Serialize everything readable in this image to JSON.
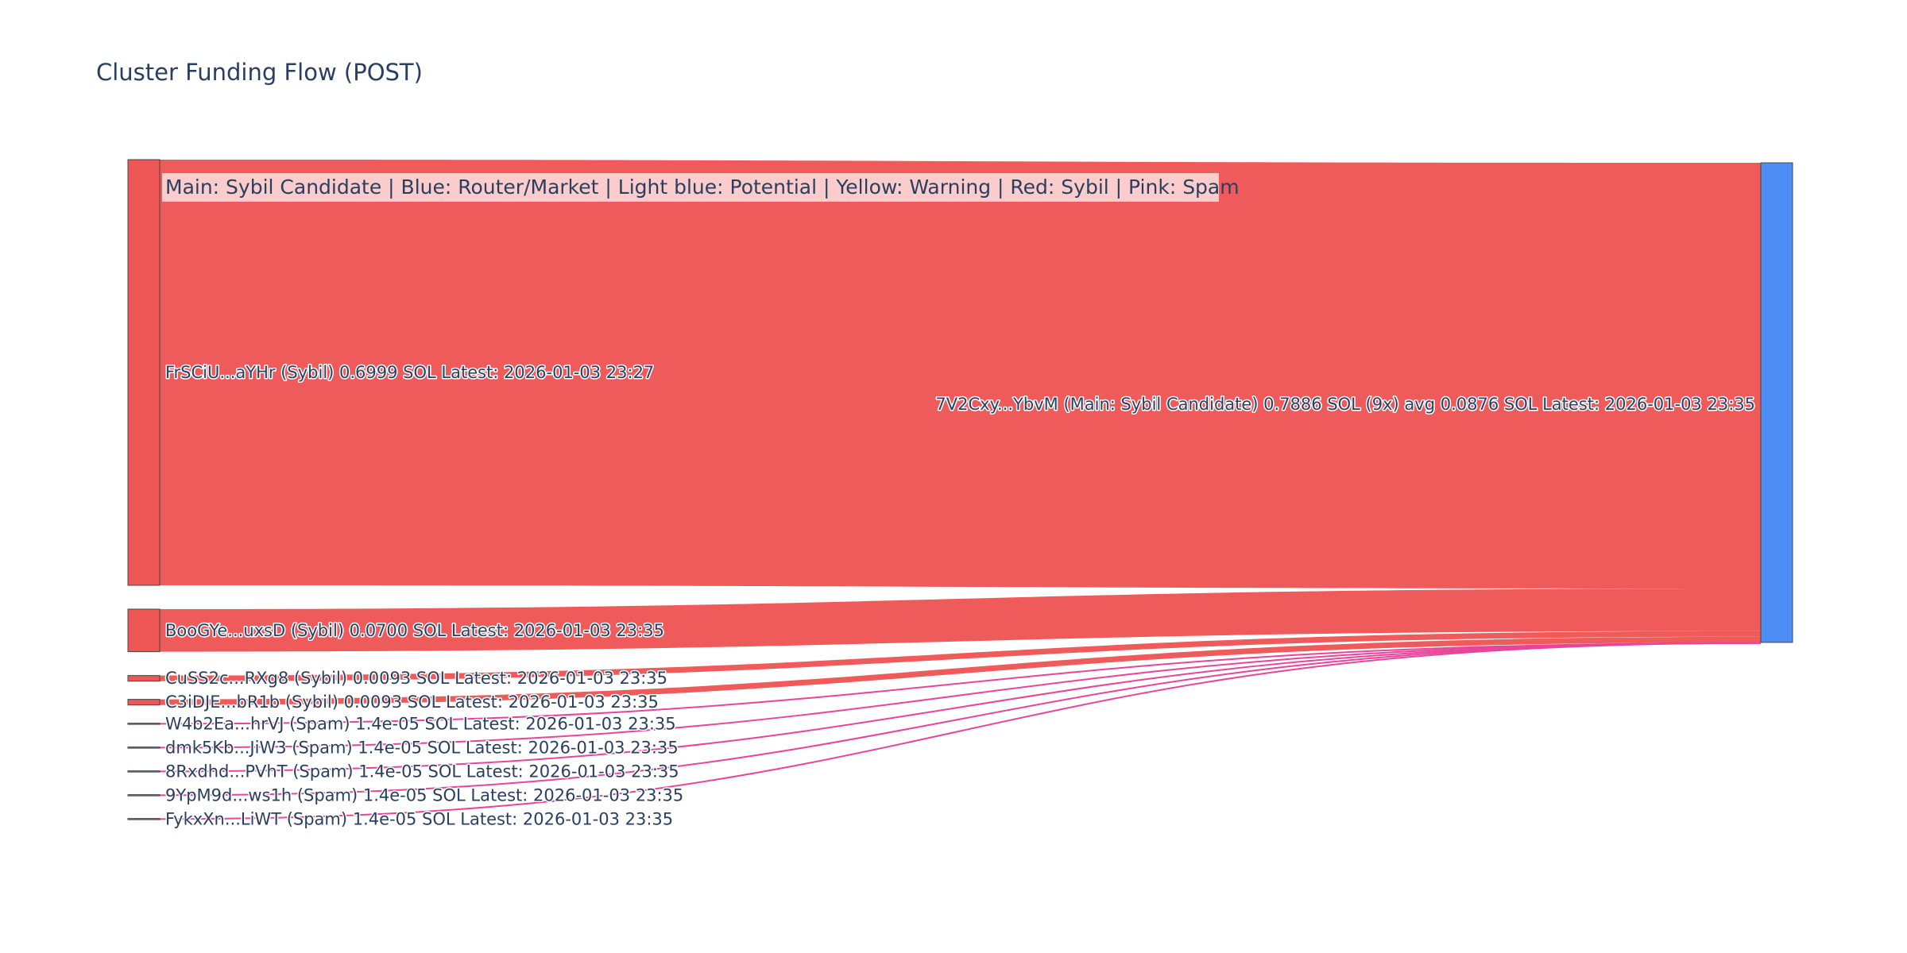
{
  "chart_data": {
    "type": "sankey",
    "title": "Cluster Funding Flow (POST)",
    "annotation": "Main: Sybil Candidate  |  Blue: Router/Market | Light blue: Potential | Yellow: Warning | Red: Sybil | Pink: Spam",
    "colors": {
      "sybil": "#ef5757",
      "spam": "#e8459a",
      "main": "#4d8ef5",
      "annotation_bg": "#fbe0e0",
      "node_border": "#444444"
    },
    "target": {
      "id": "main",
      "label": "7V2Cxy...YbvM (Main: Sybil Candidate) 0.7886 SOL (9x) avg 0.0876 SOL Latest: 2026-01-03 23:35",
      "value": 0.7886,
      "category": "main"
    },
    "sources": [
      {
        "label": "FrSCiU...aYHr (Sybil) 0.6999 SOL Latest: 2026-01-03 23:27",
        "value": 0.6999,
        "category": "sybil"
      },
      {
        "label": "BooGYe...uxsD (Sybil) 0.0700 SOL Latest: 2026-01-03 23:35",
        "value": 0.07,
        "category": "sybil"
      },
      {
        "label": "CuSS2c...RXg8 (Sybil) 0.0093 SOL Latest: 2026-01-03 23:35",
        "value": 0.0093,
        "category": "sybil"
      },
      {
        "label": "C3iDJE...bR1b (Sybil) 0.0093 SOL Latest: 2026-01-03 23:35",
        "value": 0.0093,
        "category": "sybil"
      },
      {
        "label": "W4b2Ea...hrVJ (Spam) 1.4e-05 SOL Latest: 2026-01-03 23:35",
        "value": 1.4e-05,
        "category": "spam"
      },
      {
        "label": "dmk5Kb...JiW3 (Spam) 1.4e-05 SOL Latest: 2026-01-03 23:35",
        "value": 1.4e-05,
        "category": "spam"
      },
      {
        "label": "8Rxdhd...PVhT (Spam) 1.4e-05 SOL Latest: 2026-01-03 23:35",
        "value": 1.4e-05,
        "category": "spam"
      },
      {
        "label": "9YpM9d...ws1h (Spam) 1.4e-05 SOL Latest: 2026-01-03 23:35",
        "value": 1.4e-05,
        "category": "spam"
      },
      {
        "label": "FykxXn...LiWT (Spam) 1.4e-05 SOL Latest: 2026-01-03 23:35",
        "value": 1.4e-05,
        "category": "spam"
      }
    ]
  }
}
